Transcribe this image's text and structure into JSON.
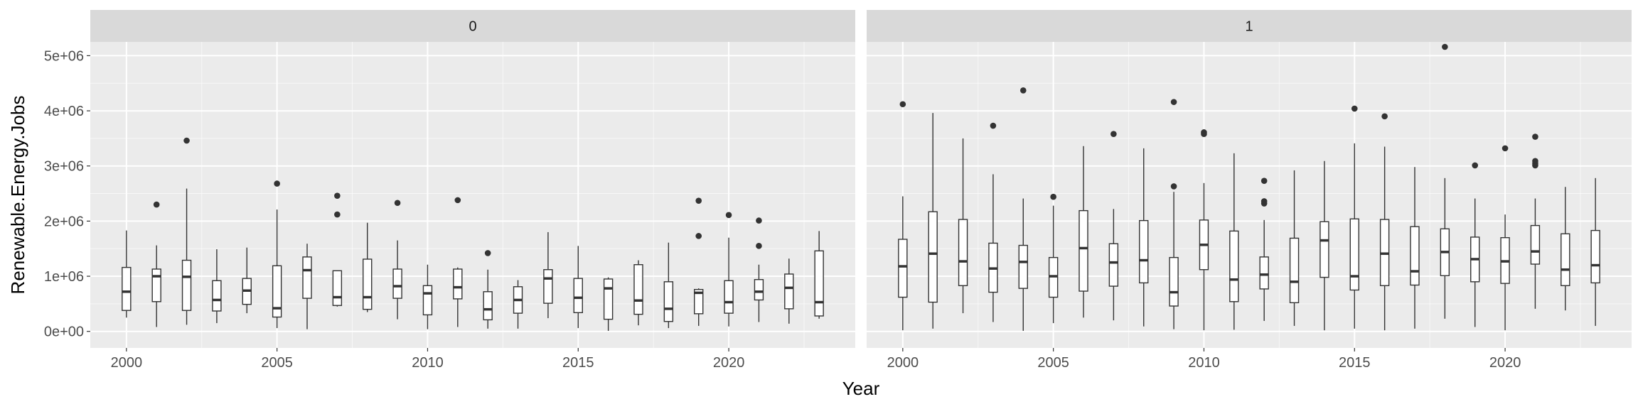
{
  "chart_data": {
    "type": "boxplot",
    "facet_by": "Renewable.Energy",
    "xlabel": "Year",
    "ylabel": "Renewable.Energy.Jobs",
    "xlim": [
      1998.8,
      2024.2
    ],
    "ylim": [
      -300000,
      5250000
    ],
    "x_ticks": [
      2000,
      2005,
      2010,
      2015,
      2020
    ],
    "x_tick_labels": [
      "2000",
      "2005",
      "2010",
      "2015",
      "2020"
    ],
    "y_ticks": [
      0,
      1000000,
      2000000,
      3000000,
      4000000,
      5000000
    ],
    "y_tick_labels": [
      "0e+00",
      "1e+06",
      "2e+06",
      "3e+06",
      "4e+06",
      "5e+06"
    ],
    "grid": true,
    "colors": {
      "panel_bg": "#ebebeb",
      "strip_bg": "#d9d9d9",
      "grid": "#ffffff",
      "box": "#333333",
      "box_fill": "#ffffff"
    },
    "panels": [
      {
        "label": "0",
        "boxes": [
          {
            "year": 2000,
            "min": 250000,
            "q1": 380000,
            "median": 720000,
            "q3": 1160000,
            "max": 1830000,
            "outliers": []
          },
          {
            "year": 2001,
            "min": 80000,
            "q1": 540000,
            "median": 1000000,
            "q3": 1130000,
            "max": 1560000,
            "outliers": [
              2300000
            ]
          },
          {
            "year": 2002,
            "min": 120000,
            "q1": 380000,
            "median": 990000,
            "q3": 1290000,
            "max": 2590000,
            "outliers": [
              3460000
            ]
          },
          {
            "year": 2003,
            "min": 150000,
            "q1": 370000,
            "median": 570000,
            "q3": 920000,
            "max": 1490000,
            "outliers": []
          },
          {
            "year": 2004,
            "min": 330000,
            "q1": 490000,
            "median": 740000,
            "q3": 960000,
            "max": 1520000,
            "outliers": []
          },
          {
            "year": 2005,
            "min": 60000,
            "q1": 260000,
            "median": 420000,
            "q3": 1190000,
            "max": 2210000,
            "outliers": [
              2680000
            ]
          },
          {
            "year": 2006,
            "min": 40000,
            "q1": 600000,
            "median": 1110000,
            "q3": 1350000,
            "max": 1590000,
            "outliers": []
          },
          {
            "year": 2007,
            "min": 450000,
            "q1": 470000,
            "median": 620000,
            "q3": 1100000,
            "max": 1100000,
            "outliers": [
              2120000,
              2460000
            ]
          },
          {
            "year": 2008,
            "min": 350000,
            "q1": 400000,
            "median": 620000,
            "q3": 1310000,
            "max": 1970000,
            "outliers": []
          },
          {
            "year": 2009,
            "min": 220000,
            "q1": 600000,
            "median": 820000,
            "q3": 1130000,
            "max": 1650000,
            "outliers": [
              2330000
            ]
          },
          {
            "year": 2010,
            "min": 40000,
            "q1": 300000,
            "median": 690000,
            "q3": 830000,
            "max": 1210000,
            "outliers": []
          },
          {
            "year": 2011,
            "min": 80000,
            "q1": 590000,
            "median": 800000,
            "q3": 1130000,
            "max": 1160000,
            "outliers": [
              2380000
            ]
          },
          {
            "year": 2012,
            "min": 50000,
            "q1": 210000,
            "median": 400000,
            "q3": 720000,
            "max": 1120000,
            "outliers": [
              1420000
            ]
          },
          {
            "year": 2013,
            "min": 50000,
            "q1": 330000,
            "median": 570000,
            "q3": 810000,
            "max": 930000,
            "outliers": []
          },
          {
            "year": 2014,
            "min": 240000,
            "q1": 510000,
            "median": 960000,
            "q3": 1120000,
            "max": 1800000,
            "outliers": []
          },
          {
            "year": 2015,
            "min": 60000,
            "q1": 340000,
            "median": 610000,
            "q3": 960000,
            "max": 1550000,
            "outliers": []
          },
          {
            "year": 2016,
            "min": 10000,
            "q1": 220000,
            "median": 780000,
            "q3": 950000,
            "max": 980000,
            "outliers": []
          },
          {
            "year": 2017,
            "min": 110000,
            "q1": 310000,
            "median": 560000,
            "q3": 1210000,
            "max": 1290000,
            "outliers": []
          },
          {
            "year": 2018,
            "min": 60000,
            "q1": 180000,
            "median": 410000,
            "q3": 900000,
            "max": 1610000,
            "outliers": []
          },
          {
            "year": 2019,
            "min": 100000,
            "q1": 320000,
            "median": 700000,
            "q3": 760000,
            "max": 780000,
            "outliers": [
              1730000,
              2370000
            ]
          },
          {
            "year": 2020,
            "min": 90000,
            "q1": 330000,
            "median": 530000,
            "q3": 920000,
            "max": 1700000,
            "outliers": [
              2110000
            ]
          },
          {
            "year": 2021,
            "min": 170000,
            "q1": 570000,
            "median": 720000,
            "q3": 940000,
            "max": 1210000,
            "outliers": [
              1550000,
              2010000
            ]
          },
          {
            "year": 2022,
            "min": 140000,
            "q1": 410000,
            "median": 790000,
            "q3": 1040000,
            "max": 1320000,
            "outliers": []
          },
          {
            "year": 2023,
            "min": 230000,
            "q1": 280000,
            "median": 530000,
            "q3": 1460000,
            "max": 1820000,
            "outliers": []
          }
        ]
      },
      {
        "label": "1",
        "boxes": [
          {
            "year": 2000,
            "min": 20000,
            "q1": 620000,
            "median": 1180000,
            "q3": 1670000,
            "max": 2450000,
            "outliers": [
              4120000
            ]
          },
          {
            "year": 2001,
            "min": 50000,
            "q1": 530000,
            "median": 1410000,
            "q3": 2170000,
            "max": 3960000,
            "outliers": []
          },
          {
            "year": 2002,
            "min": 330000,
            "q1": 830000,
            "median": 1270000,
            "q3": 2030000,
            "max": 3500000,
            "outliers": []
          },
          {
            "year": 2003,
            "min": 170000,
            "q1": 710000,
            "median": 1140000,
            "q3": 1600000,
            "max": 2850000,
            "outliers": [
              3730000
            ]
          },
          {
            "year": 2004,
            "min": 10000,
            "q1": 780000,
            "median": 1260000,
            "q3": 1560000,
            "max": 2410000,
            "outliers": [
              4370000
            ]
          },
          {
            "year": 2005,
            "min": 150000,
            "q1": 620000,
            "median": 1000000,
            "q3": 1340000,
            "max": 2280000,
            "outliers": [
              2440000
            ]
          },
          {
            "year": 2006,
            "min": 250000,
            "q1": 730000,
            "median": 1510000,
            "q3": 2190000,
            "max": 3360000,
            "outliers": []
          },
          {
            "year": 2007,
            "min": 200000,
            "q1": 820000,
            "median": 1250000,
            "q3": 1590000,
            "max": 2220000,
            "outliers": [
              3580000
            ]
          },
          {
            "year": 2008,
            "min": 90000,
            "q1": 880000,
            "median": 1290000,
            "q3": 2010000,
            "max": 3320000,
            "outliers": []
          },
          {
            "year": 2009,
            "min": 40000,
            "q1": 460000,
            "median": 710000,
            "q3": 1340000,
            "max": 2530000,
            "outliers": [
              2630000,
              4160000
            ]
          },
          {
            "year": 2010,
            "min": 20000,
            "q1": 1120000,
            "median": 1570000,
            "q3": 2020000,
            "max": 2690000,
            "outliers": [
              3580000,
              3610000
            ]
          },
          {
            "year": 2011,
            "min": 30000,
            "q1": 540000,
            "median": 940000,
            "q3": 1820000,
            "max": 3230000,
            "outliers": []
          },
          {
            "year": 2012,
            "min": 190000,
            "q1": 770000,
            "median": 1030000,
            "q3": 1350000,
            "max": 2020000,
            "outliers": [
              2320000,
              2360000,
              2730000
            ]
          },
          {
            "year": 2013,
            "min": 100000,
            "q1": 520000,
            "median": 900000,
            "q3": 1690000,
            "max": 2920000,
            "outliers": []
          },
          {
            "year": 2014,
            "min": 20000,
            "q1": 980000,
            "median": 1650000,
            "q3": 1990000,
            "max": 3090000,
            "outliers": []
          },
          {
            "year": 2015,
            "min": 50000,
            "q1": 750000,
            "median": 1000000,
            "q3": 2040000,
            "max": 3410000,
            "outliers": [
              4040000
            ]
          },
          {
            "year": 2016,
            "min": 20000,
            "q1": 830000,
            "median": 1410000,
            "q3": 2030000,
            "max": 3350000,
            "outliers": [
              3900000
            ]
          },
          {
            "year": 2017,
            "min": 50000,
            "q1": 840000,
            "median": 1090000,
            "q3": 1900000,
            "max": 2980000,
            "outliers": []
          },
          {
            "year": 2018,
            "min": 230000,
            "q1": 1010000,
            "median": 1440000,
            "q3": 1860000,
            "max": 2780000,
            "outliers": [
              5160000
            ]
          },
          {
            "year": 2019,
            "min": 80000,
            "q1": 900000,
            "median": 1310000,
            "q3": 1710000,
            "max": 2410000,
            "outliers": [
              3010000
            ]
          },
          {
            "year": 2020,
            "min": 20000,
            "q1": 870000,
            "median": 1270000,
            "q3": 1700000,
            "max": 2120000,
            "outliers": [
              3320000
            ]
          },
          {
            "year": 2021,
            "min": 410000,
            "q1": 1220000,
            "median": 1450000,
            "q3": 1920000,
            "max": 2410000,
            "outliers": [
              3010000,
              3050000,
              3090000,
              3530000
            ]
          },
          {
            "year": 2022,
            "min": 380000,
            "q1": 830000,
            "median": 1120000,
            "q3": 1770000,
            "max": 2620000,
            "outliers": []
          },
          {
            "year": 2023,
            "min": 100000,
            "q1": 880000,
            "median": 1200000,
            "q3": 1830000,
            "max": 2780000,
            "outliers": []
          }
        ]
      }
    ]
  }
}
